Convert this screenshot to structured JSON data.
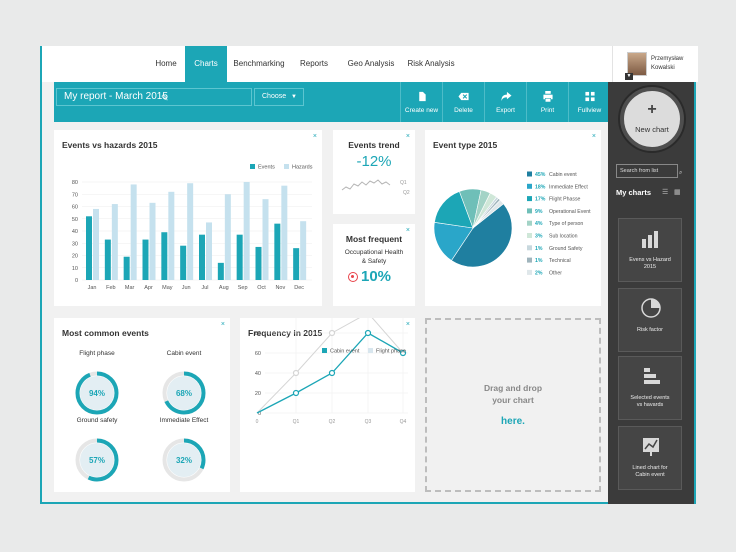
{
  "nav": {
    "items": [
      "Home",
      "Charts",
      "Benchmarking",
      "Reports",
      "Geo Analysis",
      "Risk Analysis"
    ],
    "active": "Charts"
  },
  "user": {
    "first": "Przemysław",
    "last": "Kowalski"
  },
  "toolbar": {
    "report_title": "My report - March 2015",
    "choose_label": "Choose",
    "tools": [
      "Create new",
      "Delete",
      "Export",
      "Print",
      "Fullview"
    ]
  },
  "panels": {
    "events_vs_hazards": {
      "title": "Events vs hazards 2015",
      "close": "×"
    },
    "events_trend": {
      "title": "Events trend",
      "value": "-12%",
      "close": "×",
      "axis_labels": [
        "Q1",
        "Q2"
      ]
    },
    "most_frequent": {
      "title": "Most frequent",
      "line1": "Occupational Health",
      "line2": "& Safety",
      "value": "10%",
      "close": "×"
    },
    "event_type": {
      "title": "Event type 2015",
      "close": "×"
    },
    "most_common": {
      "title": "Most common events",
      "close": "×",
      "donuts": [
        {
          "label": "Flight phase",
          "value": "94%",
          "fraction": 0.94
        },
        {
          "label": "Cabin event",
          "value": "68%",
          "fraction": 0.68
        },
        {
          "label": "Ground safety",
          "value": "57%",
          "fraction": 0.57
        },
        {
          "label": "Immediate Effect",
          "value": "32%",
          "fraction": 0.32
        }
      ]
    },
    "frequency": {
      "title": "Frequency in 2015",
      "close": "×"
    },
    "dropzone": {
      "line1": "Drag and drop",
      "line2": "your chart",
      "line3": "here."
    }
  },
  "sidebar": {
    "new_chart": "New chart",
    "search_placeholder": "Search from list",
    "my_charts": "My charts",
    "tiles": [
      {
        "label1": "Evens vs Hazard",
        "label2": "2015",
        "icon": "bar-chart-icon"
      },
      {
        "label1": "Risk factor",
        "label2": "",
        "icon": "pie-chart-icon"
      },
      {
        "label1": "Selected events",
        "label2": "vs havards",
        "icon": "stacked-bar-icon"
      },
      {
        "label1": "Lined chart for",
        "label2": "Cabin event",
        "icon": "line-chart-icon"
      }
    ]
  },
  "colors": {
    "accent": "#1ca6b6",
    "light": "#c5e1ee",
    "dark": "#3b3b3b",
    "red": "#e8434a"
  },
  "chart_data": [
    {
      "type": "bar",
      "title": "Events vs hazards 2015",
      "categories": [
        "Jan",
        "Feb",
        "Mar",
        "Apr",
        "May",
        "Jun",
        "Jul",
        "Aug",
        "Sep",
        "Oct",
        "Nov",
        "Dec"
      ],
      "series": [
        {
          "name": "Events",
          "values": [
            52,
            33,
            19,
            33,
            39,
            28,
            37,
            14,
            37,
            27,
            46,
            26
          ]
        },
        {
          "name": "Hazards",
          "values": [
            58,
            62,
            78,
            63,
            72,
            79,
            47,
            70,
            80,
            66,
            77,
            48
          ]
        }
      ],
      "yticks": [
        0,
        10,
        20,
        30,
        40,
        50,
        60,
        70,
        80
      ],
      "ylim": [
        0,
        80
      ],
      "grid": true,
      "legend": "top-right"
    },
    {
      "type": "pie",
      "title": "Event type 2015",
      "labels": [
        "Cabin event",
        "Immediate Effect",
        "Flight Phasse",
        "Operational Event",
        "Type of person",
        "Sub location",
        "Ground Safety",
        "Technical",
        "Other"
      ],
      "display": [
        "45%",
        "18%",
        "17%",
        "9%",
        "4%",
        "3%",
        "1%",
        "1%",
        "2%"
      ],
      "values": [
        45,
        18,
        17,
        9,
        4,
        3,
        1,
        1,
        2
      ],
      "colors": [
        "#1f7fa0",
        "#2aa6c9",
        "#1ca6b6",
        "#6fbfb8",
        "#a3d3c6",
        "#cfe7d8",
        "#c8d8de",
        "#9fb4bc",
        "#dfe7ea"
      ],
      "legend": "right"
    },
    {
      "type": "line",
      "title": "Frequency in 2015",
      "categories": [
        "Q1",
        "Q2",
        "Q3",
        "Q4"
      ],
      "series": [
        {
          "name": "Cabin event",
          "values": [
            20,
            40,
            80,
            60
          ]
        },
        {
          "name": "Flight phase",
          "values": [
            40,
            80,
            100,
            60
          ]
        }
      ],
      "yticks": [
        0,
        20,
        40,
        60,
        80,
        100
      ],
      "ylim": [
        0,
        100
      ],
      "leading": {
        "x": "0",
        "value": 0
      },
      "grid": true,
      "legend": "top"
    }
  ]
}
